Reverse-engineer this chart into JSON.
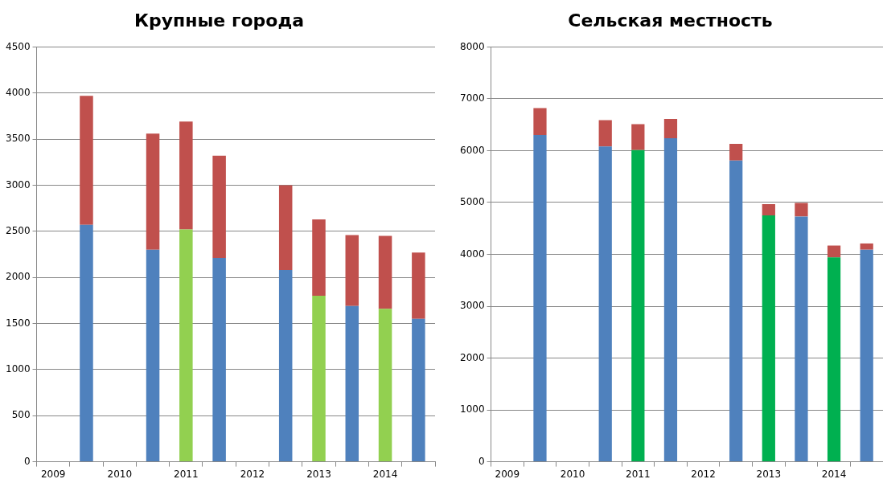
{
  "chart_data": [
    {
      "type": "bar",
      "title": "Крупные города",
      "stacked": true,
      "grid": "y",
      "legend": false,
      "categories": [
        "2009",
        null,
        "2010",
        null,
        "2011",
        null,
        "2012",
        null,
        "2013",
        null,
        "2014",
        null
      ],
      "series": [
        {
          "colors": [
            "#4f81bd",
            "#4f81bd",
            "#4f81bd",
            "#4f81bd",
            "#92d050",
            "#4f81bd",
            "#4f81bd",
            "#4f81bd",
            "#92d050",
            "#4f81bd",
            "#92d050",
            "#4f81bd"
          ],
          "values": [
            null,
            2570,
            null,
            2300,
            2520,
            2210,
            null,
            2080,
            1800,
            1690,
            1660,
            1550
          ]
        },
        {
          "color": "#c0504d",
          "values": [
            null,
            1400,
            null,
            1260,
            1170,
            1110,
            null,
            920,
            830,
            770,
            790,
            720
          ]
        }
      ],
      "ylim": [
        0,
        4500
      ],
      "yticks": [
        0,
        500,
        1000,
        1500,
        2000,
        2500,
        3000,
        3500,
        4000,
        4500
      ]
    },
    {
      "type": "bar",
      "title": "Сельская местность",
      "stacked": true,
      "grid": "y",
      "legend": false,
      "categories": [
        "2009",
        null,
        "2010",
        null,
        "2011",
        null,
        "2012",
        null,
        "2013",
        null,
        "2014",
        null
      ],
      "series": [
        {
          "colors": [
            "#4f81bd",
            "#4f81bd",
            "#4f81bd",
            "#4f81bd",
            "#00b050",
            "#4f81bd",
            "#4f81bd",
            "#4f81bd",
            "#00b050",
            "#4f81bd",
            "#00b050",
            "#4f81bd"
          ],
          "values": [
            null,
            6300,
            null,
            6080,
            6010,
            6240,
            null,
            5810,
            4750,
            4730,
            3940,
            4090
          ]
        },
        {
          "color": "#c0504d",
          "values": [
            null,
            520,
            null,
            510,
            500,
            370,
            null,
            320,
            220,
            260,
            230,
            120
          ]
        }
      ],
      "ylim": [
        0,
        8000
      ],
      "yticks": [
        0,
        1000,
        2000,
        3000,
        4000,
        5000,
        6000,
        7000,
        8000
      ]
    }
  ]
}
